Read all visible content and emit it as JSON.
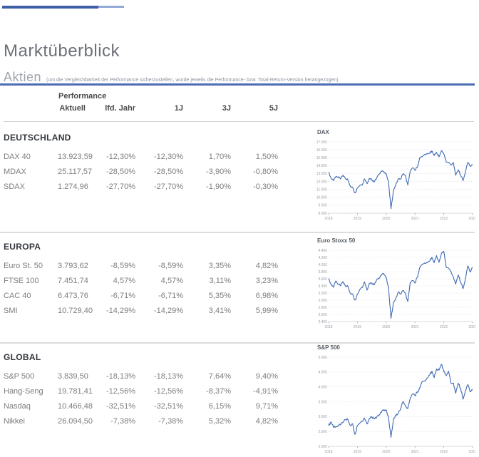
{
  "header": {
    "title": "Marktüberblick",
    "section_title": "Aktien",
    "section_note": "(um die Vergleichbarkeit der Performance sicherzustellen, wurde jeweils die Performance- bzw. Total-Return-Version herangezogen)"
  },
  "colors": {
    "accent_blue": "#4b6db4",
    "topline_dark": "#3d5fa9",
    "topline_light": "#93a9d6",
    "chart_line": "#3f6ab5",
    "grid_line": "#dddddd"
  },
  "table": {
    "group_label": "Performance",
    "columns": [
      "Aktuell",
      "lfd. Jahr",
      "1J",
      "3J",
      "5J"
    ],
    "sections": [
      {
        "title": "DEUTSCHLAND",
        "rows": [
          {
            "name": "DAX 40",
            "values": [
              "13.923,59",
              "-12,30%",
              "-12,30%",
              "1,70%",
              "1,50%"
            ]
          },
          {
            "name": "MDAX",
            "values": [
              "25.117,57",
              "-28,50%",
              "-28,50%",
              "-3,90%",
              "-0,80%"
            ]
          },
          {
            "name": "SDAX",
            "values": [
              "1.274,96",
              "-27,70%",
              "-27,70%",
              "-1,90%",
              "-0,30%"
            ]
          }
        ]
      },
      {
        "title": "EUROPA",
        "rows": [
          {
            "name": "Euro St. 50",
            "values": [
              "3.793,62",
              "-8,59%",
              "-8,59%",
              "3,35%",
              "4,82%"
            ]
          },
          {
            "name": "FTSE 100",
            "values": [
              "7.451,74",
              "4,57%",
              "4,57%",
              "3,11%",
              "3,23%"
            ]
          },
          {
            "name": "CAC 40",
            "values": [
              "6.473,76",
              "-6,71%",
              "-6,71%",
              "5,35%",
              "6,98%"
            ]
          },
          {
            "name": "SMI",
            "values": [
              "10.729,40",
              "-14,29%",
              "-14,29%",
              "3,41%",
              "5,99%"
            ]
          }
        ]
      },
      {
        "title": "GLOBAL",
        "rows": [
          {
            "name": "S&P 500",
            "values": [
              "3.839,50",
              "-18,13%",
              "-18,13%",
              "7,64%",
              "9,40%"
            ]
          },
          {
            "name": "Hang-Seng",
            "values": [
              "19.781,41",
              "-12,56%",
              "-12,56%",
              "-8,37%",
              "-4,91%"
            ]
          },
          {
            "name": "Nasdaq",
            "values": [
              "10.466,48",
              "-32,51%",
              "-32,51%",
              "6,15%",
              "9,71%"
            ]
          },
          {
            "name": "Nikkei",
            "values": [
              "26.094,50",
              "-7,38%",
              "-7,38%",
              "5,32%",
              "4,82%"
            ]
          }
        ]
      }
    ]
  },
  "chart_data": [
    {
      "type": "line",
      "title": "DAX",
      "x_ticks": [
        "2018",
        "2019",
        "2020",
        "2021",
        "2022",
        "2023"
      ],
      "y_ticks": [
        "17.000",
        "16.000",
        "15.000",
        "14.000",
        "13.000",
        "12.000",
        "11.000",
        "10.000",
        "9.000",
        "8.000"
      ],
      "ylim": [
        8000,
        17000
      ],
      "grid": true,
      "legend": "none",
      "values": [
        13190,
        12440,
        12100,
        12610,
        12600,
        12300,
        12800,
        12360,
        12250,
        11450,
        11260,
        10560,
        11170,
        11520,
        11530,
        12340,
        11730,
        12400,
        12190,
        11940,
        12430,
        12870,
        13240,
        13250,
        12980,
        11890,
        8560,
        10860,
        11590,
        12310,
        12310,
        12950,
        12760,
        11560,
        13290,
        13720,
        13430,
        13790,
        15000,
        15140,
        15420,
        15530,
        15540,
        15840,
        15260,
        15690,
        15100,
        15880,
        15470,
        14460,
        14410,
        14100,
        14390,
        12780,
        13480,
        12830,
        12110,
        13250,
        14400,
        13920,
        14070
      ]
    },
    {
      "type": "line",
      "title": "Euro Stoxx 50",
      "x_ticks": [
        "2018",
        "2019",
        "2020",
        "2021",
        "2022",
        "2023"
      ],
      "y_ticks": [
        "4.400",
        "4.200",
        "4.000",
        "3.800",
        "3.600",
        "3.400",
        "3.200",
        "3.000",
        "2.800",
        "2.600",
        "2.400"
      ],
      "ylim": [
        2400,
        4400
      ],
      "grid": true,
      "legend": "none",
      "values": [
        3610,
        3440,
        3360,
        3540,
        3450,
        3400,
        3520,
        3390,
        3400,
        3200,
        3170,
        3000,
        3160,
        3300,
        3350,
        3510,
        3280,
        3470,
        3470,
        3430,
        3570,
        3600,
        3700,
        3750,
        3640,
        3330,
        2490,
        2930,
        3040,
        3230,
        3170,
        3270,
        3190,
        2960,
        3490,
        3550,
        3480,
        3640,
        3920,
        4000,
        4040,
        4060,
        4090,
        4200,
        4050,
        4250,
        4060,
        4300,
        4370,
        3920,
        3900,
        3800,
        3650,
        3450,
        3710,
        3520,
        3320,
        3600,
        3960,
        3790,
        3920
      ]
    },
    {
      "type": "line",
      "title": "S&P 500",
      "x_ticks": [
        "2018",
        "2019",
        "2020",
        "2021",
        "2022",
        "2023"
      ],
      "y_ticks": [
        "5.000",
        "4.500",
        "4.000",
        "3.500",
        "3.000",
        "2.500",
        "2.000"
      ],
      "ylim": [
        2000,
        5000
      ],
      "grid": true,
      "legend": "none",
      "values": [
        2696,
        2824,
        2641,
        2648,
        2705,
        2718,
        2816,
        2902,
        2914,
        2712,
        2760,
        2400,
        2704,
        2784,
        2834,
        2946,
        2752,
        2942,
        2980,
        2926,
        2977,
        3038,
        3141,
        3231,
        3226,
        2954,
        2300,
        2912,
        3044,
        3100,
        3271,
        3500,
        3363,
        3270,
        3622,
        3756,
        3714,
        3811,
        3973,
        4181,
        4204,
        4298,
        4395,
        4523,
        4308,
        4605,
        4567,
        4766,
        4516,
        4374,
        4530,
        4132,
        4132,
        3785,
        4130,
        3955,
        3586,
        3872,
        4080,
        3840,
        3895
      ]
    }
  ]
}
